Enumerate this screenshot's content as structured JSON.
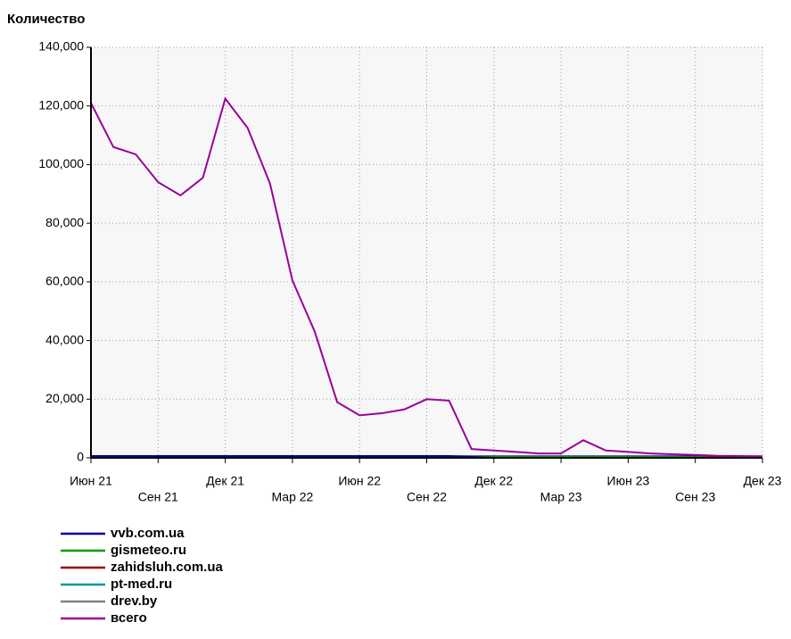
{
  "chart_data": {
    "type": "line",
    "title": "Количество",
    "categories": [
      "Июн 21",
      null,
      null,
      "Сен 21",
      null,
      null,
      "Дек 21",
      null,
      null,
      "Мар 22",
      null,
      null,
      "Июн 22",
      null,
      null,
      "Сен 22",
      null,
      null,
      "Дек 22",
      null,
      null,
      "Мар 23",
      null,
      null,
      "Июн 23",
      null,
      null,
      "Сен 23",
      null,
      null,
      "Дек 23"
    ],
    "ylim": [
      0,
      140000
    ],
    "yticks": [
      0,
      {
        "value": 20000,
        "label": "20,000"
      },
      {
        "value": 40000,
        "label": "40,000"
      },
      {
        "value": 60000,
        "label": "60,000"
      },
      {
        "value": 80000,
        "label": "80,000"
      },
      {
        "value": 100000,
        "label": "100,000"
      },
      {
        "value": 120000,
        "label": "120,000"
      },
      {
        "value": 140000,
        "label": "140,000"
      }
    ],
    "grid": true,
    "series": [
      {
        "name": "vvb.com.ua",
        "color": "#000099",
        "values": [
          600,
          600,
          600,
          600,
          600,
          600,
          600,
          600,
          600,
          600,
          600,
          600,
          600,
          600,
          600,
          600,
          600,
          500,
          500,
          500,
          500,
          500,
          500,
          500,
          500,
          500,
          500,
          500,
          500,
          500,
          500
        ]
      },
      {
        "name": "gismeteo.ru",
        "color": "#009900",
        "values": [
          0,
          0,
          0,
          0,
          0,
          0,
          0,
          0,
          0,
          0,
          0,
          0,
          0,
          0,
          0,
          0,
          0,
          0,
          300,
          300,
          300,
          300,
          300,
          300,
          300,
          300,
          300,
          300,
          300,
          0,
          0
        ]
      },
      {
        "name": "zahidsluh.com.ua",
        "color": "#990000",
        "values": [
          0,
          0,
          0,
          0,
          0,
          0,
          0,
          0,
          0,
          0,
          0,
          0,
          0,
          0,
          0,
          0,
          0,
          0,
          0,
          0,
          0,
          0,
          0,
          0,
          0,
          0,
          0,
          0,
          200,
          200,
          0
        ]
      },
      {
        "name": "pt-med.ru",
        "color": "#009999",
        "values": [
          0,
          0,
          0,
          0,
          0,
          0,
          0,
          0,
          0,
          0,
          0,
          0,
          0,
          0,
          0,
          0,
          0,
          0,
          0,
          0,
          0,
          0,
          0,
          0,
          0,
          0,
          0,
          0,
          0,
          0,
          0
        ]
      },
      {
        "name": "drev.by",
        "color": "#808080",
        "values": [
          0,
          0,
          0,
          0,
          0,
          0,
          0,
          0,
          0,
          0,
          0,
          0,
          0,
          0,
          0,
          0,
          0,
          0,
          0,
          0,
          0,
          0,
          0,
          0,
          0,
          0,
          0,
          0,
          0,
          0,
          0
        ]
      },
      {
        "name": "всего",
        "color": "#990099",
        "values": [
          121000,
          106000,
          103500,
          94000,
          89500,
          95500,
          122500,
          112500,
          93500,
          60500,
          43000,
          19000,
          14500,
          15200,
          16500,
          20000,
          19500,
          3000,
          2500,
          2000,
          1500,
          1500,
          6000,
          2500,
          2000,
          1500,
          1200,
          1000,
          700,
          600,
          500
        ]
      }
    ]
  }
}
